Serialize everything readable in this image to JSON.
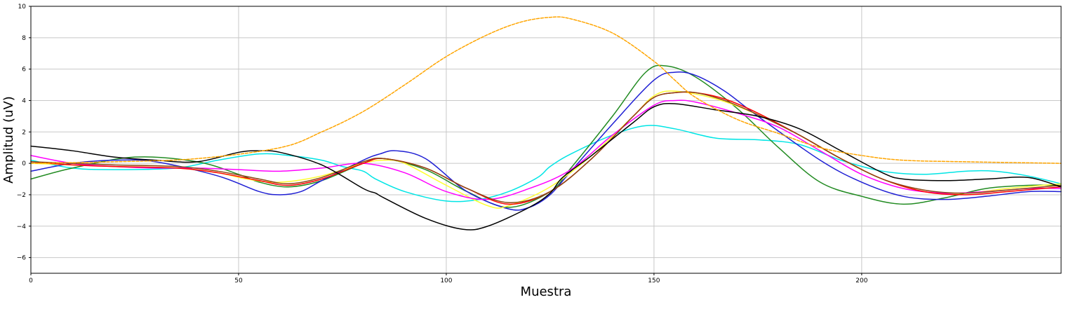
{
  "chart_data": {
    "type": "line",
    "title": "",
    "xlabel": "Muestra",
    "ylabel": "Amplitud (uV)",
    "xlim": [
      0,
      248
    ],
    "ylim": [
      -7,
      10
    ],
    "xticks": [
      0,
      50,
      100,
      150,
      200
    ],
    "yticks": [
      -6,
      -4,
      -2,
      0,
      2,
      4,
      6,
      8,
      10
    ],
    "grid": true,
    "legend": "none",
    "series": [
      {
        "color": "#00e5e5",
        "style": "solid",
        "x": [
          0,
          10,
          20,
          35,
          45,
          55,
          62,
          70,
          75,
          80,
          83,
          90,
          100,
          108,
          115,
          122,
          125,
          130,
          140,
          148,
          155,
          165,
          175,
          185,
          195,
          205,
          215,
          225,
          232,
          240,
          248
        ],
        "y": [
          0.2,
          -0.3,
          -0.4,
          -0.3,
          0.2,
          0.6,
          0.5,
          0.2,
          -0.2,
          -0.5,
          -1.0,
          -1.8,
          -2.4,
          -2.3,
          -1.8,
          -0.9,
          -0.2,
          0.6,
          1.8,
          2.4,
          2.2,
          1.6,
          1.5,
          1.2,
          0.2,
          -0.5,
          -0.7,
          -0.5,
          -0.5,
          -0.8,
          -1.3
        ]
      },
      {
        "color": "#228b22",
        "style": "solid",
        "x": [
          0,
          10,
          25,
          40,
          50,
          55,
          62,
          70,
          80,
          85,
          95,
          105,
          115,
          125,
          130,
          140,
          148,
          153,
          160,
          170,
          180,
          190,
          200,
          210,
          220,
          230,
          240,
          248
        ],
        "y": [
          -1.0,
          -0.3,
          0.4,
          0.1,
          -0.7,
          -1.2,
          -1.5,
          -1.1,
          0.0,
          0.3,
          -0.4,
          -1.8,
          -2.8,
          -1.8,
          -0.3,
          3.0,
          5.8,
          6.2,
          5.5,
          3.5,
          1.0,
          -1.2,
          -2.1,
          -2.6,
          -2.2,
          -1.6,
          -1.4,
          -1.4
        ]
      },
      {
        "color": "#1f1fd4",
        "style": "solid",
        "x": [
          0,
          10,
          20,
          30,
          45,
          55,
          60,
          65,
          70,
          80,
          84,
          88,
          95,
          105,
          115,
          120,
          125,
          130,
          140,
          150,
          155,
          160,
          167,
          175,
          190,
          200,
          210,
          220,
          230,
          240,
          248
        ],
        "y": [
          -0.5,
          0.0,
          0.2,
          0.1,
          -0.8,
          -1.8,
          -2.0,
          -1.8,
          -1.1,
          0.2,
          0.6,
          0.8,
          0.3,
          -1.8,
          -2.9,
          -2.8,
          -2.0,
          -0.5,
          2.5,
          5.3,
          5.8,
          5.6,
          4.6,
          3.0,
          0.2,
          -1.2,
          -2.1,
          -2.3,
          -2.1,
          -1.8,
          -1.8
        ]
      },
      {
        "color": "#ffff33",
        "style": "solid",
        "x": [
          0,
          10,
          20,
          35,
          45,
          52,
          60,
          70,
          80,
          85,
          90,
          100,
          110,
          115,
          125,
          135,
          145,
          150,
          155,
          165,
          175,
          185,
          195,
          205,
          215,
          225,
          235,
          248
        ],
        "y": [
          0.0,
          -0.1,
          -0.2,
          -0.3,
          -0.6,
          -1.0,
          -1.2,
          -0.8,
          0.0,
          0.2,
          0.0,
          -1.4,
          -2.7,
          -2.7,
          -1.5,
          0.5,
          3.0,
          4.3,
          4.6,
          4.1,
          3.1,
          1.8,
          0.3,
          -1.0,
          -1.8,
          -1.9,
          -1.6,
          -1.3
        ]
      },
      {
        "color": "#ff00ff",
        "style": "solid",
        "x": [
          0,
          10,
          20,
          30,
          40,
          50,
          60,
          70,
          80,
          90,
          100,
          110,
          120,
          130,
          140,
          150,
          155,
          160,
          170,
          180,
          190,
          200,
          210,
          220,
          230,
          240,
          248
        ],
        "y": [
          0.5,
          0.0,
          -0.2,
          -0.3,
          -0.3,
          -0.4,
          -0.5,
          -0.3,
          0.0,
          -0.6,
          -1.8,
          -2.3,
          -1.6,
          -0.4,
          1.8,
          3.7,
          4.0,
          3.9,
          3.2,
          2.3,
          0.8,
          -0.7,
          -1.6,
          -1.9,
          -1.8,
          -1.6,
          -1.6
        ]
      },
      {
        "color": "#ff0000",
        "style": "solid",
        "x": [
          0,
          10,
          20,
          35,
          45,
          55,
          62,
          70,
          80,
          85,
          95,
          105,
          115,
          125,
          135,
          145,
          150,
          155,
          160,
          167,
          175,
          185,
          195,
          205,
          215,
          225,
          235,
          248
        ],
        "y": [
          0.1,
          -0.1,
          -0.2,
          -0.3,
          -0.6,
          -1.1,
          -1.4,
          -1.0,
          0.0,
          0.3,
          -0.3,
          -1.6,
          -2.6,
          -1.8,
          0.3,
          3.0,
          4.2,
          4.5,
          4.5,
          4.1,
          3.2,
          1.8,
          0.3,
          -1.0,
          -1.8,
          -2.0,
          -1.8,
          -1.5
        ]
      },
      {
        "color": "#8b4513",
        "style": "solid",
        "x": [
          0,
          10,
          20,
          35,
          45,
          55,
          62,
          70,
          80,
          85,
          95,
          105,
          115,
          125,
          135,
          145,
          150,
          155,
          160,
          167,
          175,
          185,
          195,
          205,
          215,
          225,
          235,
          248
        ],
        "y": [
          0.1,
          0.0,
          -0.1,
          -0.2,
          -0.5,
          -1.0,
          -1.3,
          -0.9,
          0.1,
          0.3,
          -0.3,
          -1.6,
          -2.5,
          -1.8,
          0.3,
          3.0,
          4.2,
          4.5,
          4.5,
          4.0,
          3.1,
          1.8,
          0.3,
          -1.0,
          -1.7,
          -1.9,
          -1.7,
          -1.4
        ]
      },
      {
        "color": "#000000",
        "style": "solid",
        "x": [
          0,
          10,
          20,
          30,
          40,
          50,
          55,
          60,
          70,
          80,
          83,
          85,
          95,
          104,
          110,
          120,
          125,
          128,
          135,
          145,
          150,
          155,
          165,
          175,
          185,
          195,
          205,
          210,
          220,
          230,
          240,
          248
        ],
        "y": [
          1.1,
          0.8,
          0.4,
          0.2,
          0.1,
          0.7,
          0.8,
          0.7,
          -0.1,
          -1.6,
          -1.9,
          -2.2,
          -3.5,
          -4.2,
          -4.0,
          -2.8,
          -1.9,
          -0.9,
          0.5,
          2.6,
          3.6,
          3.8,
          3.4,
          3.0,
          2.2,
          0.8,
          -0.6,
          -1.0,
          -1.1,
          -1.0,
          -0.9,
          -1.5
        ]
      },
      {
        "color": "#ffa500",
        "style": "dashed",
        "x": [
          0,
          20,
          40,
          60,
          70,
          80,
          90,
          100,
          110,
          118,
          125,
          130,
          140,
          150,
          155,
          160,
          170,
          180,
          190,
          200,
          210,
          225,
          248
        ],
        "y": [
          0.0,
          0.1,
          0.3,
          1.0,
          2.0,
          3.3,
          5.0,
          6.8,
          8.2,
          9.0,
          9.3,
          9.2,
          8.3,
          6.5,
          5.3,
          4.2,
          2.8,
          1.9,
          1.0,
          0.5,
          0.2,
          0.1,
          0.0
        ]
      }
    ]
  }
}
